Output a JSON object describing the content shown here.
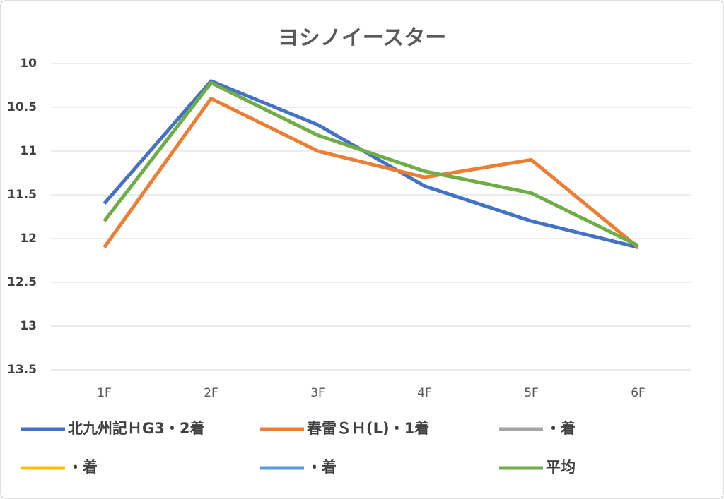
{
  "chart_data": {
    "type": "line",
    "title": "ヨシノイースター",
    "categories": [
      "1F",
      "2F",
      "3F",
      "4F",
      "5F",
      "6F"
    ],
    "series": [
      {
        "name": "北九州記ＨG3・2着",
        "color": "#4472c4",
        "values": [
          11.6,
          10.2,
          10.7,
          11.4,
          11.8,
          12.1
        ]
      },
      {
        "name": "春雷ＳＨ(L)・1着",
        "color": "#ed7d31",
        "values": [
          12.1,
          10.4,
          11.0,
          11.3,
          11.1,
          12.1
        ]
      },
      {
        "name": "・着",
        "color": "#a5a5a5",
        "values": [
          null,
          null,
          null,
          null,
          null,
          null
        ]
      },
      {
        "name": "・着",
        "color": "#ffc000",
        "values": [
          null,
          null,
          null,
          null,
          null,
          null
        ]
      },
      {
        "name": "・着",
        "color": "#5b9bd5",
        "values": [
          null,
          null,
          null,
          null,
          null,
          null
        ]
      },
      {
        "name": "平均",
        "color": "#70ad47",
        "values": [
          11.8,
          10.22,
          10.82,
          11.23,
          11.48,
          12.08
        ]
      }
    ],
    "ylim": [
      10,
      13.5
    ],
    "yticks": [
      10,
      10.5,
      11,
      11.5,
      12,
      12.5,
      13,
      13.5
    ],
    "y_inverted": true,
    "grid": true,
    "legend": "bottom"
  }
}
